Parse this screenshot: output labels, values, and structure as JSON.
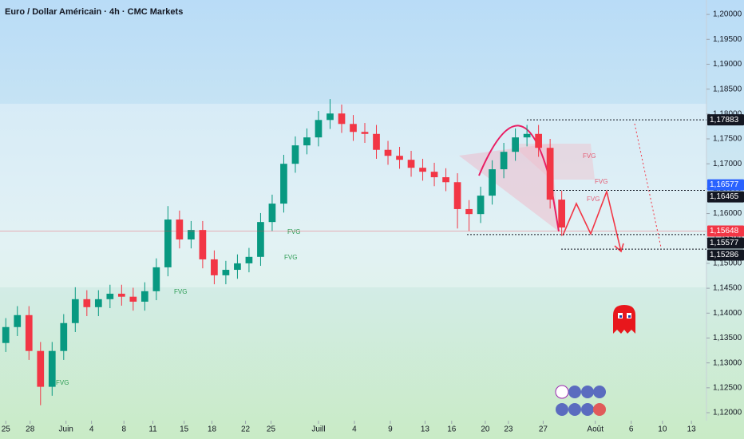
{
  "chart_data": {
    "type": "candlestick",
    "title": "Euro / Dollar Américain · 4h · CMC Markets",
    "x": [
      0.5,
      1.5,
      2.5,
      3.5,
      4.5,
      5.5,
      6.5,
      7.5,
      8.5,
      9.5,
      10.5,
      11.5,
      12.5,
      13.5,
      14.5,
      15.5,
      16.5,
      17.5,
      18.5,
      19.5,
      20.5,
      21.5,
      22.5,
      23.5,
      24.5,
      25.5,
      26.5,
      27.5,
      28.5,
      29.5,
      30.5,
      31.5,
      32.5,
      33.5,
      34.5,
      35.5,
      36.5,
      37.5,
      38.5,
      39.5,
      40.5,
      41.5,
      42.5,
      43.5,
      44.5,
      45.5,
      46.5,
      47.5,
      48.5
    ],
    "open": [
      1.134,
      1.1372,
      1.1396,
      1.1324,
      1.1252,
      1.1324,
      1.138,
      1.1428,
      1.1412,
      1.1428,
      1.1439,
      1.1433,
      1.1423,
      1.1444,
      1.1492,
      1.1588,
      1.1548,
      1.1567,
      1.1508,
      1.1476,
      1.1487,
      1.15,
      1.1513,
      1.1583,
      1.162,
      1.17,
      1.1737,
      1.1753,
      1.1788,
      1.1801,
      1.178,
      1.1764,
      1.176,
      1.1728,
      1.1716,
      1.1708,
      1.1692,
      1.1684,
      1.1673,
      1.1663,
      1.1609,
      1.1599,
      1.1636,
      1.1689,
      1.1724,
      1.1753,
      1.176,
      1.1732,
      1.1628
    ],
    "high": [
      1.139,
      1.1414,
      1.1414,
      1.1342,
      1.1342,
      1.1398,
      1.1452,
      1.1446,
      1.1446,
      1.1457,
      1.1457,
      1.1451,
      1.1462,
      1.151,
      1.1615,
      1.1606,
      1.1585,
      1.1585,
      1.1526,
      1.1505,
      1.1518,
      1.1531,
      1.1601,
      1.1638,
      1.1718,
      1.1755,
      1.1771,
      1.1806,
      1.183,
      1.1819,
      1.1798,
      1.1782,
      1.1778,
      1.1746,
      1.1734,
      1.1726,
      1.171,
      1.1702,
      1.1691,
      1.1681,
      1.1627,
      1.1654,
      1.1707,
      1.1742,
      1.1771,
      1.1778,
      1.1778,
      1.175,
      1.1646
    ],
    "low": [
      1.1322,
      1.1354,
      1.1306,
      1.1215,
      1.1234,
      1.1306,
      1.1362,
      1.1394,
      1.1394,
      1.141,
      1.1415,
      1.1405,
      1.1405,
      1.1426,
      1.1474,
      1.153,
      1.153,
      1.149,
      1.1458,
      1.1458,
      1.1469,
      1.1482,
      1.1495,
      1.1565,
      1.1602,
      1.1682,
      1.1719,
      1.1735,
      1.177,
      1.1762,
      1.1746,
      1.1742,
      1.171,
      1.1698,
      1.169,
      1.1674,
      1.1666,
      1.1655,
      1.1645,
      1.157,
      1.1565,
      1.1581,
      1.1618,
      1.1671,
      1.1706,
      1.1735,
      1.1714,
      1.161,
      1.1555
    ],
    "close": [
      1.1372,
      1.1396,
      1.1324,
      1.1252,
      1.1324,
      1.138,
      1.1428,
      1.1412,
      1.1428,
      1.1439,
      1.1433,
      1.1423,
      1.1444,
      1.1492,
      1.1588,
      1.1548,
      1.1567,
      1.1508,
      1.1476,
      1.1487,
      1.15,
      1.1513,
      1.1583,
      1.162,
      1.17,
      1.1737,
      1.1753,
      1.1788,
      1.1801,
      1.178,
      1.1764,
      1.176,
      1.1728,
      1.1716,
      1.1708,
      1.1692,
      1.1684,
      1.1673,
      1.1663,
      1.1609,
      1.1599,
      1.1636,
      1.1689,
      1.1724,
      1.1753,
      1.176,
      1.1732,
      1.1628,
      1.1572
    ],
    "up_color": "#089981",
    "down_color": "#f23645",
    "xlim": [
      0,
      61
    ],
    "xticks": [
      {
        "value": 0.5,
        "label": "25"
      },
      {
        "value": 2.6,
        "label": "28"
      },
      {
        "value": 5.7,
        "label": "Juin"
      },
      {
        "value": 7.9,
        "label": "4"
      },
      {
        "value": 10.7,
        "label": "8"
      },
      {
        "value": 13.2,
        "label": "11"
      },
      {
        "value": 15.9,
        "label": "15"
      },
      {
        "value": 18.3,
        "label": "18"
      },
      {
        "value": 21.2,
        "label": "22"
      },
      {
        "value": 23.4,
        "label": "25"
      },
      {
        "value": 27.5,
        "label": "Juill"
      },
      {
        "value": 30.6,
        "label": "4"
      },
      {
        "value": 33.7,
        "label": "9"
      },
      {
        "value": 36.7,
        "label": "13"
      },
      {
        "value": 39.0,
        "label": "16"
      },
      {
        "value": 41.9,
        "label": "20"
      },
      {
        "value": 43.9,
        "label": "23"
      },
      {
        "value": 46.9,
        "label": "27"
      },
      {
        "value": 51.4,
        "label": "Août"
      },
      {
        "value": 54.5,
        "label": "6"
      },
      {
        "value": 57.2,
        "label": "10"
      },
      {
        "value": 59.7,
        "label": "13"
      }
    ],
    "ylim": [
      1.1184,
      1.2029
    ],
    "yticks": [
      {
        "value": 1.12,
        "label": "1,12000"
      },
      {
        "value": 1.125,
        "label": "1,12500"
      },
      {
        "value": 1.13,
        "label": "1,13000"
      },
      {
        "value": 1.135,
        "label": "1,13500"
      },
      {
        "value": 1.14,
        "label": "1,14000"
      },
      {
        "value": 1.145,
        "label": "1,14500"
      },
      {
        "value": 1.15,
        "label": "1,15000"
      },
      {
        "value": 1.155,
        "label": "1,15500"
      },
      {
        "value": 1.16,
        "label": "1,16000"
      },
      {
        "value": 1.165,
        "label": "1,16500"
      },
      {
        "value": 1.17,
        "label": "1,17000"
      },
      {
        "value": 1.175,
        "label": "1,17500"
      },
      {
        "value": 1.18,
        "label": "1,18000"
      },
      {
        "value": 1.185,
        "label": "1,18500"
      },
      {
        "value": 1.19,
        "label": "1,19000"
      },
      {
        "value": 1.195,
        "label": "1,19500"
      },
      {
        "value": 1.2,
        "label": "1,20000"
      }
    ],
    "price_labels": [
      {
        "value": 1.17883,
        "label": "1,17883",
        "color": "#131722",
        "line_style": "dotted"
      },
      {
        "value": 1.16577,
        "label": "1,16577",
        "color": "#2962ff",
        "line_style": "none"
      },
      {
        "value": 1.16465,
        "label": "1,16465",
        "color": "#131722",
        "line_style": "dotted"
      },
      {
        "value": 1.15648,
        "label": "1,15648",
        "color": "#f23645",
        "line_style": "solid"
      },
      {
        "value": 1.15577,
        "label": "1,15577",
        "color": "#131722",
        "line_style": "dotted"
      },
      {
        "value": 1.15286,
        "label": "1,15286",
        "color": "#131722",
        "line_style": "dotted"
      }
    ],
    "annotations": [
      "FVG",
      "FVG",
      "FVG",
      "FVG",
      "FVG",
      "FVG",
      "FVG"
    ]
  }
}
